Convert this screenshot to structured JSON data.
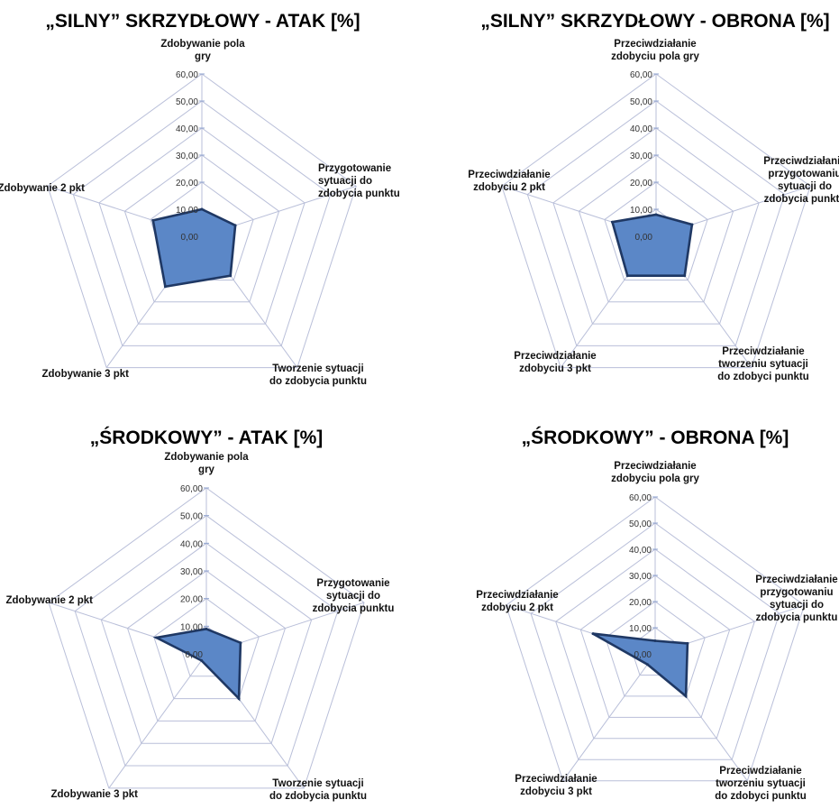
{
  "style": {
    "grid_color": "#b9bfd9",
    "grid_fill": "#ffffff",
    "series_fill": "#5b87c7",
    "series_stroke": "#1f3864",
    "tick_mark_color": "#8fa3cf"
  },
  "chart_data": [
    {
      "type": "radar",
      "title": "„SILNY” SKRZYDŁOWY - ATAK [%]",
      "rlim": [
        0,
        60
      ],
      "ticks": [
        "0,00",
        "10,00",
        "20,00",
        "30,00",
        "40,00",
        "50,00",
        "60,00"
      ],
      "tick_values": [
        0,
        10,
        20,
        30,
        40,
        50,
        60
      ],
      "axes": [
        [
          "Zdobywanie pola",
          "gry"
        ],
        [
          "Przygotowanie",
          "sytuacji do",
          "zdobycia punktu"
        ],
        [
          "Tworzenie sytuacji",
          "do zdobycia punktu"
        ],
        [
          "Zdobywanie 3 pkt"
        ],
        [
          "Zdobywanie 2 pkt"
        ]
      ],
      "series": [
        {
          "values": [
            10,
            13,
            18,
            23,
            19
          ]
        }
      ]
    },
    {
      "type": "radar",
      "title": "„SILNY” SKRZYDŁOWY - OBRONA [%]",
      "rlim": [
        0,
        60
      ],
      "ticks": [
        "0,00",
        "10,00",
        "20,00",
        "30,00",
        "40,00",
        "50,00",
        "60,00"
      ],
      "tick_values": [
        0,
        10,
        20,
        30,
        40,
        50,
        60
      ],
      "axes": [
        [
          "Przeciwdziałanie",
          "zdobyciu pola gry"
        ],
        [
          "Przeciwdziałanie",
          "przygotowaniu",
          "sytuacji do",
          "zdobycia punktu"
        ],
        [
          "Przeciwdziałanie",
          "tworzeniu sytuacji",
          "do zdobyci punktu"
        ],
        [
          "Przeciwdziałanie",
          "zdobyciu 3 pkt"
        ],
        [
          "Przeciwdziałanie",
          "zdobyciu 2 pkt"
        ]
      ],
      "series": [
        {
          "values": [
            8,
            14,
            18,
            18,
            17
          ]
        }
      ]
    },
    {
      "type": "radar",
      "title": "„ŚRODKOWY” - ATAK [%]",
      "rlim": [
        0,
        60
      ],
      "ticks": [
        "0,00",
        "10,00",
        "20,00",
        "30,00",
        "40,00",
        "50,00",
        "60,00"
      ],
      "tick_values": [
        0,
        10,
        20,
        30,
        40,
        50,
        60
      ],
      "axes": [
        [
          "Zdobywanie pola",
          "gry"
        ],
        [
          "Przygotowanie",
          "sytuacji do",
          "zdobycia punktu"
        ],
        [
          "Tworzenie sytuacji",
          "do zdobycia punktu"
        ],
        [
          "Zdobywanie 3 pkt"
        ],
        [
          "Zdobywanie 2 pkt"
        ]
      ],
      "series": [
        {
          "values": [
            9,
            13,
            20,
            3,
            19
          ]
        }
      ]
    },
    {
      "type": "radar",
      "title": "„ŚRODKOWY” - OBRONA [%]",
      "rlim": [
        0,
        60
      ],
      "ticks": [
        "0,00",
        "10,00",
        "20,00",
        "30,00",
        "40,00",
        "50,00",
        "60,00"
      ],
      "tick_values": [
        0,
        10,
        20,
        30,
        40,
        50,
        60
      ],
      "axes": [
        [
          "Przeciwdziałanie",
          "zdobyciu pola gry"
        ],
        [
          "Przeciwdziałanie",
          "przygotowaniu",
          "sytuacji do",
          "zdobycia punktu"
        ],
        [
          "Przeciwdziałanie",
          "tworzeniu sytuacji",
          "do zdobyci punktu"
        ],
        [
          "Przeciwdziałanie",
          "zdobyciu 3 pkt"
        ],
        [
          "Przeciwdziałanie",
          "zdobyciu 2 pkt"
        ]
      ],
      "series": [
        {
          "values": [
            5,
            13,
            20,
            5,
            25
          ]
        }
      ]
    }
  ]
}
